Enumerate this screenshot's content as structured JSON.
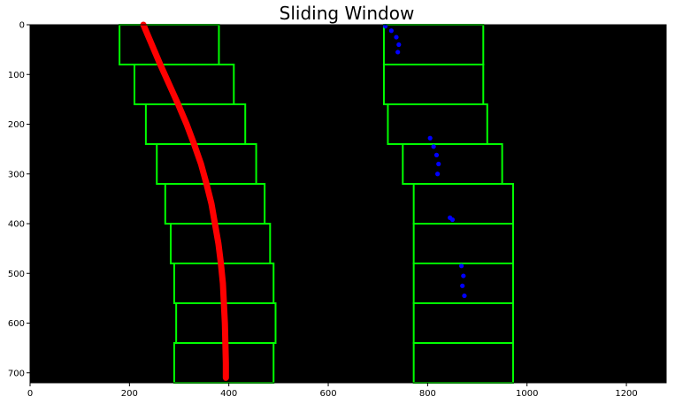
{
  "chart_data": {
    "type": "image",
    "title": "Sliding Window",
    "xlim": [
      0,
      1280
    ],
    "ylim": [
      720,
      0
    ],
    "x_ticks": [
      0,
      200,
      400,
      600,
      800,
      1000,
      1200
    ],
    "y_ticks": [
      0,
      100,
      200,
      300,
      400,
      500,
      600,
      700
    ],
    "background_color": "#000000",
    "window_color": "#00ff00",
    "left_lane_color": "#ff0000",
    "right_lane_color": "#0000ff",
    "window_height": 80,
    "left_windows": [
      {
        "x0": 180,
        "x1": 380,
        "y0": 0
      },
      {
        "x0": 210,
        "x1": 410,
        "y0": 80
      },
      {
        "x0": 233,
        "x1": 433,
        "y0": 160
      },
      {
        "x0": 255,
        "x1": 455,
        "y0": 240
      },
      {
        "x0": 272,
        "x1": 472,
        "y0": 320
      },
      {
        "x0": 283,
        "x1": 483,
        "y0": 400
      },
      {
        "x0": 290,
        "x1": 490,
        "y0": 480
      },
      {
        "x0": 294,
        "x1": 494,
        "y0": 560
      },
      {
        "x0": 290,
        "x1": 490,
        "y0": 640
      }
    ],
    "right_windows": [
      {
        "x0": 712,
        "x1": 912,
        "y0": 0
      },
      {
        "x0": 712,
        "x1": 912,
        "y0": 80
      },
      {
        "x0": 720,
        "x1": 920,
        "y0": 160
      },
      {
        "x0": 750,
        "x1": 950,
        "y0": 240
      },
      {
        "x0": 772,
        "x1": 972,
        "y0": 320
      },
      {
        "x0": 772,
        "x1": 972,
        "y0": 400
      },
      {
        "x0": 772,
        "x1": 972,
        "y0": 480
      },
      {
        "x0": 772,
        "x1": 972,
        "y0": 560
      },
      {
        "x0": 772,
        "x1": 972,
        "y0": 640
      }
    ],
    "left_lane_points": [
      [
        228,
        0
      ],
      [
        245,
        40
      ],
      [
        262,
        80
      ],
      [
        280,
        120
      ],
      [
        298,
        160
      ],
      [
        315,
        200
      ],
      [
        330,
        240
      ],
      [
        344,
        280
      ],
      [
        355,
        320
      ],
      [
        365,
        360
      ],
      [
        372,
        400
      ],
      [
        379,
        440
      ],
      [
        384,
        480
      ],
      [
        388,
        520
      ],
      [
        390,
        560
      ],
      [
        392,
        600
      ],
      [
        393,
        640
      ],
      [
        394,
        680
      ],
      [
        394,
        710
      ]
    ],
    "right_lane_points": [
      [
        715,
        3
      ],
      [
        727,
        12
      ],
      [
        737,
        25
      ],
      [
        742,
        40
      ],
      [
        740,
        55
      ],
      [
        805,
        228
      ],
      [
        812,
        245
      ],
      [
        818,
        262
      ],
      [
        822,
        280
      ],
      [
        820,
        300
      ],
      [
        845,
        388
      ],
      [
        850,
        392
      ],
      [
        868,
        485
      ],
      [
        872,
        505
      ],
      [
        870,
        525
      ],
      [
        874,
        545
      ]
    ]
  }
}
